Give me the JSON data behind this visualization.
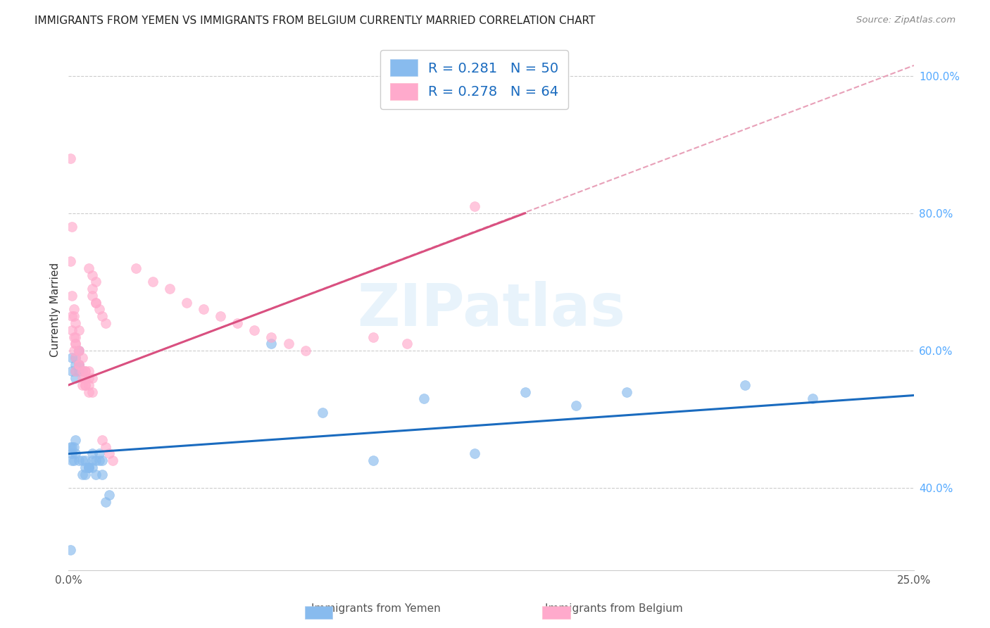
{
  "title": "IMMIGRANTS FROM YEMEN VS IMMIGRANTS FROM BELGIUM CURRENTLY MARRIED CORRELATION CHART",
  "source": "Source: ZipAtlas.com",
  "ylabel": "Currently Married",
  "xlim": [
    0.0,
    0.25
  ],
  "ylim": [
    0.28,
    1.04
  ],
  "x_ticks": [
    0.0,
    0.05,
    0.1,
    0.15,
    0.2,
    0.25
  ],
  "x_tick_labels": [
    "0.0%",
    "",
    "",
    "",
    "",
    "25.0%"
  ],
  "y_ticks": [
    0.4,
    0.6,
    0.8,
    1.0
  ],
  "y_tick_labels": [
    "40.0%",
    "60.0%",
    "80.0%",
    "100.0%"
  ],
  "legend_color_1": "#88bbee",
  "legend_color_2": "#ffaacc",
  "bottom_legend_1": "Immigrants from Yemen",
  "bottom_legend_2": "Immigrants from Belgium",
  "watermark": "ZIPatlas",
  "scatter_yemen_color": "#88bbee",
  "scatter_belgium_color": "#ffaacc",
  "line_yemen_color": "#1a6bbf",
  "line_belgium_color": "#d95080",
  "dashed_line_color": "#e8a0b8",
  "yemen_trend_x": [
    0.0,
    0.25
  ],
  "yemen_trend_y": [
    0.45,
    0.535
  ],
  "belgium_trend_x": [
    0.0,
    0.135
  ],
  "belgium_trend_y": [
    0.55,
    0.8
  ],
  "dashed_trend_x": [
    0.0,
    0.25
  ],
  "dashed_trend_y": [
    0.55,
    1.015
  ],
  "yemen_x": [
    0.0005,
    0.001,
    0.0015,
    0.001,
    0.002,
    0.0005,
    0.001,
    0.0015,
    0.002,
    0.001,
    0.002,
    0.003,
    0.002,
    0.003,
    0.001,
    0.002,
    0.003,
    0.002,
    0.003,
    0.004,
    0.003,
    0.004,
    0.005,
    0.004,
    0.005,
    0.006,
    0.005,
    0.006,
    0.007,
    0.006,
    0.007,
    0.008,
    0.007,
    0.008,
    0.009,
    0.01,
    0.009,
    0.01,
    0.011,
    0.012,
    0.06,
    0.075,
    0.09,
    0.105,
    0.12,
    0.135,
    0.15,
    0.165,
    0.2,
    0.22
  ],
  "yemen_y": [
    0.31,
    0.44,
    0.44,
    0.46,
    0.45,
    0.46,
    0.45,
    0.46,
    0.47,
    0.57,
    0.57,
    0.58,
    0.59,
    0.6,
    0.59,
    0.58,
    0.57,
    0.56,
    0.58,
    0.57,
    0.44,
    0.44,
    0.43,
    0.42,
    0.44,
    0.43,
    0.42,
    0.43,
    0.44,
    0.43,
    0.45,
    0.44,
    0.43,
    0.42,
    0.44,
    0.44,
    0.45,
    0.42,
    0.38,
    0.39,
    0.61,
    0.51,
    0.44,
    0.53,
    0.45,
    0.54,
    0.52,
    0.54,
    0.55,
    0.53
  ],
  "belgium_x": [
    0.0005,
    0.001,
    0.0005,
    0.001,
    0.0015,
    0.001,
    0.0015,
    0.002,
    0.001,
    0.0015,
    0.002,
    0.0015,
    0.002,
    0.003,
    0.002,
    0.003,
    0.002,
    0.003,
    0.002,
    0.003,
    0.004,
    0.003,
    0.004,
    0.005,
    0.004,
    0.005,
    0.004,
    0.005,
    0.006,
    0.005,
    0.006,
    0.005,
    0.006,
    0.007,
    0.006,
    0.007,
    0.006,
    0.007,
    0.008,
    0.007,
    0.008,
    0.007,
    0.008,
    0.009,
    0.01,
    0.011,
    0.01,
    0.011,
    0.012,
    0.013,
    0.02,
    0.025,
    0.03,
    0.035,
    0.04,
    0.045,
    0.05,
    0.055,
    0.06,
    0.065,
    0.07,
    0.09,
    0.1,
    0.12
  ],
  "belgium_y": [
    0.88,
    0.78,
    0.73,
    0.68,
    0.66,
    0.65,
    0.65,
    0.64,
    0.63,
    0.62,
    0.61,
    0.6,
    0.61,
    0.63,
    0.62,
    0.6,
    0.59,
    0.58,
    0.57,
    0.6,
    0.59,
    0.58,
    0.57,
    0.56,
    0.55,
    0.57,
    0.56,
    0.55,
    0.57,
    0.55,
    0.56,
    0.57,
    0.54,
    0.56,
    0.55,
    0.54,
    0.72,
    0.71,
    0.7,
    0.69,
    0.67,
    0.68,
    0.67,
    0.66,
    0.65,
    0.64,
    0.47,
    0.46,
    0.45,
    0.44,
    0.72,
    0.7,
    0.69,
    0.67,
    0.66,
    0.65,
    0.64,
    0.63,
    0.62,
    0.61,
    0.6,
    0.62,
    0.61,
    0.81
  ]
}
